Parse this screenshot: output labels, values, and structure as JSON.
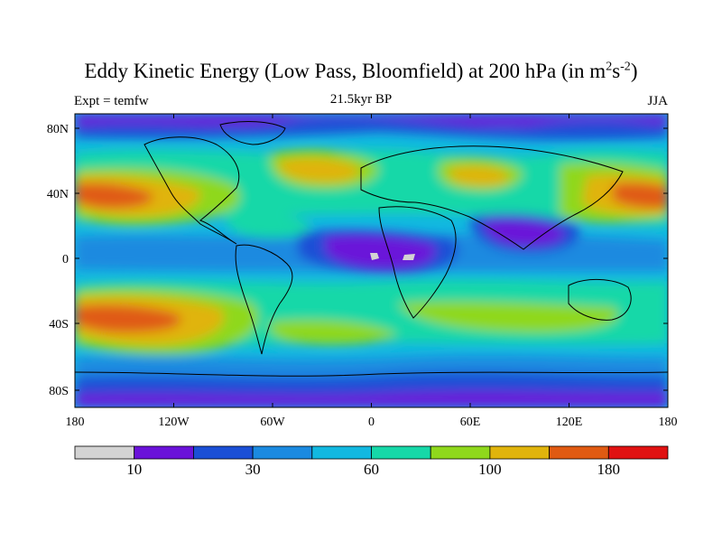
{
  "title": {
    "main": "Eddy Kinetic Energy (Low Pass, Bloomfield) at 200 hPa (in m",
    "sup1": "2",
    "mid": "s",
    "sup2": "-2",
    "end": ")"
  },
  "left_label": "Expt = temfw",
  "center_label": "21.5kyr BP",
  "right_label": "JJA",
  "lat_ticks": [
    "80N",
    "40N",
    "0",
    "40S",
    "80S"
  ],
  "lon_ticks": [
    "180",
    "120W",
    "60W",
    "0",
    "60E",
    "120E",
    "180"
  ],
  "colorbar": {
    "colors": [
      "#d3d3d3",
      "#6a12d9",
      "#1a4fd6",
      "#1b8ae0",
      "#12b8e0",
      "#16d8a8",
      "#8fd81c",
      "#e0b40c",
      "#e05a12",
      "#e01212"
    ],
    "labels": [
      "10",
      "30",
      "60",
      "100",
      "180"
    ]
  },
  "colors": {
    "very_low": "#6a12d9",
    "low": "#1a4fd6",
    "mid_low": "#1b8ae0",
    "cyan": "#12b8e0",
    "teal": "#16d8a8",
    "green": "#8fd81c",
    "orange": "#e0b40c",
    "red_orange": "#e05a12"
  }
}
